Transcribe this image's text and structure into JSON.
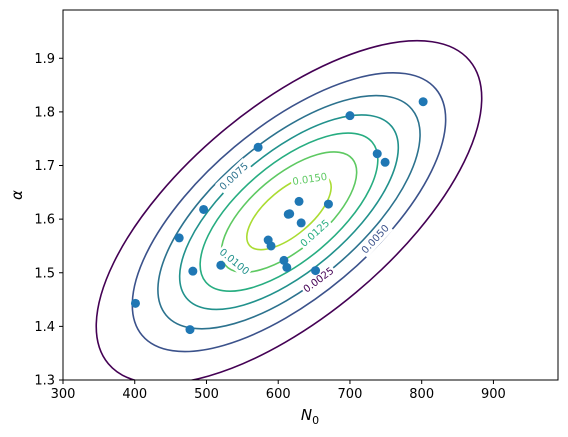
{
  "chart_data": {
    "type": "scatter",
    "title": "",
    "xlabel": "N",
    "xlabel_sub": "0",
    "ylabel": "α",
    "xlim": [
      300,
      990
    ],
    "ylim": [
      1.3,
      1.99
    ],
    "xticks": [
      300,
      400,
      500,
      600,
      700,
      800,
      900
    ],
    "xtick_labels": [
      "300",
      "400",
      "500",
      "600",
      "700",
      "800",
      "900"
    ],
    "yticks": [
      1.3,
      1.4,
      1.5,
      1.6,
      1.7,
      1.8,
      1.9
    ],
    "ytick_labels": [
      "1.3",
      "1.4",
      "1.5",
      "1.6",
      "1.7",
      "1.8",
      "1.9"
    ],
    "grid": false,
    "point_color": "#1f77b4",
    "points": {
      "x": [
        401,
        462,
        477,
        481,
        496,
        520,
        572,
        586,
        590,
        608,
        612,
        614,
        616,
        629,
        632,
        652,
        670,
        700,
        738,
        749,
        802
      ],
      "y": [
        1.443,
        1.565,
        1.394,
        1.503,
        1.618,
        1.514,
        1.734,
        1.561,
        1.55,
        1.523,
        1.51,
        1.609,
        1.61,
        1.633,
        1.593,
        1.504,
        1.628,
        1.793,
        1.722,
        1.706,
        1.819
      ]
    },
    "contours": {
      "center": [
        615,
        1.613
      ],
      "levels": [
        {
          "value": 0.0025,
          "label": "0.0025",
          "color": "#440154",
          "labeled": true,
          "label_at": [
            656,
            1.487
          ]
        },
        {
          "value": 0.005,
          "label": "0.0050",
          "color": "#3b528b",
          "labeled": true,
          "label_at": [
            735,
            1.563
          ]
        },
        {
          "value": 0.0075,
          "label": "0.0075",
          "color": "#2c728e",
          "labeled": true,
          "label_at": [
            538,
            1.68
          ]
        },
        {
          "value": 0.01,
          "label": "0.0100",
          "color": "#21918c",
          "labeled": true,
          "label_at": [
            539,
            1.521
          ]
        },
        {
          "value": 0.0125,
          "label": "0.0125",
          "color": "#27ad81",
          "labeled": true,
          "label_at": [
            651,
            1.574
          ]
        },
        {
          "value": 0.015,
          "label": "0.0150",
          "color": "#5ec962",
          "labeled": true,
          "label_at": [
            644,
            1.675
          ]
        },
        {
          "value": 0.0175,
          "label": "",
          "color": "#aadc32",
          "labeled": false,
          "label_at": [
            0,
            0
          ]
        }
      ]
    }
  }
}
